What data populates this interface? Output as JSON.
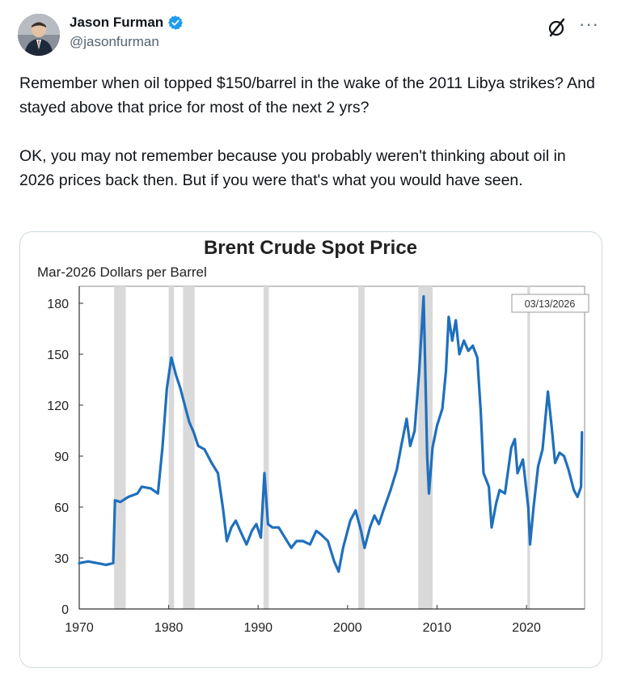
{
  "post": {
    "author": {
      "name": "Jason Furman",
      "handle": "@jasonfurman",
      "verified": true,
      "badge_color": "#1d9bf0"
    },
    "text": "Remember when oil topped $150/barrel in the wake of the 2011 Libya strikes? And stayed above that price for most of the next 2 yrs?\n\nOK, you may not remember because you probably weren't thinking about oil in 2026 prices back then. But if you were that's what you would have seen.",
    "icons": {
      "grok": "grok-icon",
      "more": "more-options-icon"
    }
  },
  "chart_data": {
    "type": "line",
    "title": "Brent Crude Spot Price",
    "subtitle": "Mar-2026 Dollars per Barrel",
    "date_label": "03/13/2026",
    "xlabel": "",
    "ylabel": "",
    "xlim": [
      1970,
      2026.5
    ],
    "ylim": [
      0,
      190
    ],
    "x_ticks": [
      1970,
      1980,
      1990,
      2000,
      2010,
      2020
    ],
    "y_ticks": [
      0,
      30,
      60,
      90,
      120,
      150,
      180
    ],
    "grid": false,
    "line_color": "#1f6fbd",
    "shade_color": "#d9d9d9",
    "recessions": [
      [
        1973.9,
        1975.2
      ],
      [
        1980.0,
        1980.6
      ],
      [
        1981.6,
        1982.9
      ],
      [
        1990.6,
        1991.2
      ],
      [
        2001.2,
        2001.9
      ],
      [
        2007.9,
        2009.5
      ],
      [
        2020.1,
        2020.4
      ]
    ],
    "series": [
      {
        "values": [
          [
            1970.0,
            27
          ],
          [
            1971.0,
            28
          ],
          [
            1972.0,
            27
          ],
          [
            1973.0,
            26
          ],
          [
            1973.8,
            27
          ],
          [
            1974.0,
            64
          ],
          [
            1974.6,
            63
          ],
          [
            1975.5,
            66
          ],
          [
            1976.5,
            68
          ],
          [
            1977.0,
            72
          ],
          [
            1978.0,
            71
          ],
          [
            1978.8,
            68
          ],
          [
            1979.3,
            95
          ],
          [
            1979.8,
            130
          ],
          [
            1980.3,
            148
          ],
          [
            1980.8,
            138
          ],
          [
            1981.3,
            130
          ],
          [
            1981.8,
            120
          ],
          [
            1982.3,
            110
          ],
          [
            1982.8,
            104
          ],
          [
            1983.3,
            96
          ],
          [
            1984.0,
            94
          ],
          [
            1984.8,
            86
          ],
          [
            1985.5,
            80
          ],
          [
            1986.1,
            58
          ],
          [
            1986.5,
            40
          ],
          [
            1987.0,
            48
          ],
          [
            1987.5,
            52
          ],
          [
            1988.0,
            46
          ],
          [
            1988.7,
            38
          ],
          [
            1989.3,
            46
          ],
          [
            1989.8,
            50
          ],
          [
            1990.3,
            42
          ],
          [
            1990.7,
            80
          ],
          [
            1991.1,
            50
          ],
          [
            1991.6,
            48
          ],
          [
            1992.3,
            48
          ],
          [
            1993.0,
            42
          ],
          [
            1993.7,
            36
          ],
          [
            1994.3,
            40
          ],
          [
            1995.0,
            40
          ],
          [
            1995.8,
            38
          ],
          [
            1996.5,
            46
          ],
          [
            1997.0,
            44
          ],
          [
            1997.8,
            40
          ],
          [
            1998.5,
            28
          ],
          [
            1999.0,
            22
          ],
          [
            1999.5,
            36
          ],
          [
            2000.3,
            52
          ],
          [
            2000.9,
            58
          ],
          [
            2001.5,
            46
          ],
          [
            2001.9,
            36
          ],
          [
            2002.5,
            48
          ],
          [
            2003.0,
            55
          ],
          [
            2003.5,
            50
          ],
          [
            2004.0,
            58
          ],
          [
            2004.8,
            70
          ],
          [
            2005.5,
            82
          ],
          [
            2006.0,
            96
          ],
          [
            2006.6,
            112
          ],
          [
            2007.0,
            96
          ],
          [
            2007.5,
            105
          ],
          [
            2008.0,
            140
          ],
          [
            2008.5,
            184
          ],
          [
            2008.9,
            90
          ],
          [
            2009.1,
            68
          ],
          [
            2009.5,
            95
          ],
          [
            2010.0,
            108
          ],
          [
            2010.6,
            118
          ],
          [
            2011.0,
            140
          ],
          [
            2011.3,
            172
          ],
          [
            2011.7,
            158
          ],
          [
            2012.1,
            170
          ],
          [
            2012.5,
            150
          ],
          [
            2013.0,
            158
          ],
          [
            2013.5,
            152
          ],
          [
            2014.0,
            155
          ],
          [
            2014.5,
            148
          ],
          [
            2014.9,
            115
          ],
          [
            2015.2,
            80
          ],
          [
            2015.8,
            72
          ],
          [
            2016.1,
            48
          ],
          [
            2016.6,
            62
          ],
          [
            2017.0,
            70
          ],
          [
            2017.6,
            68
          ],
          [
            2018.3,
            95
          ],
          [
            2018.7,
            100
          ],
          [
            2019.0,
            80
          ],
          [
            2019.6,
            88
          ],
          [
            2020.2,
            60
          ],
          [
            2020.4,
            38
          ],
          [
            2020.8,
            60
          ],
          [
            2021.3,
            84
          ],
          [
            2021.8,
            94
          ],
          [
            2022.4,
            128
          ],
          [
            2022.8,
            108
          ],
          [
            2023.2,
            86
          ],
          [
            2023.7,
            92
          ],
          [
            2024.2,
            90
          ],
          [
            2024.7,
            82
          ],
          [
            2025.3,
            70
          ],
          [
            2025.7,
            66
          ],
          [
            2026.1,
            72
          ],
          [
            2026.2,
            104
          ]
        ]
      }
    ]
  }
}
